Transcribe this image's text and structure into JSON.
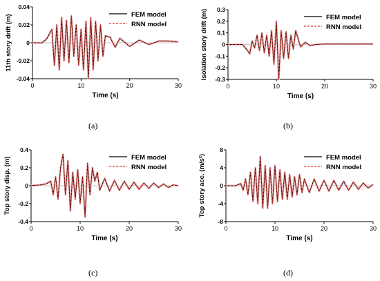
{
  "captions": [
    "(a)",
    "(b)",
    "(c)",
    "(d)"
  ],
  "colors": {
    "fem": "#000000",
    "rnn": "#d9332b",
    "fill": "#f3c2c2"
  },
  "chart_data": [
    {
      "type": "line",
      "panel": "(a)",
      "xlabel": "Time (s)",
      "ylabel": "11th story drift (m)",
      "xlim": [
        0,
        30
      ],
      "ylim": [
        -0.04,
        0.04
      ],
      "xticks": [
        0,
        10,
        20,
        30
      ],
      "yticks": [
        -0.04,
        -0.02,
        0,
        0.02,
        0.04
      ],
      "ytick_labels": [
        "-0.04",
        "-0.02",
        "0",
        "0.02",
        "0.04"
      ],
      "legend": "top-right",
      "series": [
        {
          "name": "FEM model",
          "style": "solid"
        },
        {
          "name": "RNN model",
          "style": "dashed"
        }
      ],
      "x": [
        0,
        2,
        3,
        4,
        4.5,
        5,
        5.5,
        6,
        6.5,
        7,
        7.5,
        8,
        8.5,
        9,
        9.5,
        10,
        10.5,
        11,
        11.5,
        12,
        12.5,
        13,
        13.5,
        14,
        14.5,
        15,
        16,
        17,
        18,
        20,
        22,
        24,
        26,
        28,
        30
      ],
      "y": [
        0,
        0,
        0.005,
        0.015,
        -0.025,
        0.02,
        -0.03,
        0.028,
        -0.02,
        0.025,
        -0.022,
        0.03,
        -0.015,
        0.02,
        -0.025,
        0.015,
        -0.03,
        0.024,
        -0.04,
        0.028,
        -0.03,
        0.024,
        -0.02,
        0.02,
        -0.015,
        0.008,
        0.006,
        -0.005,
        0.005,
        -0.004,
        0.003,
        -0.002,
        0.002,
        0.002,
        0.001
      ]
    },
    {
      "type": "line",
      "panel": "(b)",
      "xlabel": "Time (s)",
      "ylabel": "Isolation story drift (m)",
      "xlim": [
        0,
        30
      ],
      "ylim": [
        -0.3,
        0.3
      ],
      "xticks": [
        0,
        10,
        20,
        30
      ],
      "yticks": [
        -0.3,
        -0.2,
        -0.1,
        0,
        0.1,
        0.2,
        0.3
      ],
      "ytick_labels": [
        "-0.3",
        "-0.2",
        "-0.1",
        "0",
        "0.1",
        "0.2",
        "0.3"
      ],
      "legend": "top-right",
      "series": [
        {
          "name": "FEM model",
          "style": "solid"
        },
        {
          "name": "RNN model",
          "style": "dashed"
        }
      ],
      "x": [
        0,
        3,
        4,
        4.5,
        5,
        5.5,
        6,
        6.5,
        7,
        7.5,
        8,
        8.5,
        9,
        9.5,
        10,
        10.5,
        11,
        11.5,
        12,
        12.5,
        13,
        13.5,
        14,
        15,
        16,
        17,
        18,
        20,
        25,
        30
      ],
      "y": [
        0,
        0,
        -0.05,
        -0.08,
        0.03,
        -0.03,
        0.08,
        -0.05,
        0.1,
        -0.07,
        0.08,
        -0.1,
        0.12,
        -0.17,
        0.2,
        -0.3,
        0.12,
        -0.12,
        0.11,
        -0.12,
        0.08,
        -0.04,
        0.12,
        -0.02,
        0.02,
        -0.01,
        0,
        0.005,
        0.005,
        0.005
      ]
    },
    {
      "type": "line",
      "panel": "(c)",
      "xlabel": "Time (s)",
      "ylabel": "Top story disp. (m)",
      "xlim": [
        0,
        30
      ],
      "ylim": [
        -0.4,
        0.4
      ],
      "xticks": [
        0,
        10,
        20,
        30
      ],
      "yticks": [
        -0.4,
        -0.2,
        0,
        0.2,
        0.4
      ],
      "ytick_labels": [
        "-0.4",
        "-0.2",
        "0",
        "0.2",
        "0.4"
      ],
      "legend": "top-right",
      "series": [
        {
          "name": "FEM model",
          "style": "solid"
        },
        {
          "name": "RNN model",
          "style": "dashed"
        }
      ],
      "x": [
        0,
        2,
        3,
        4,
        4.5,
        5,
        5.5,
        6,
        6.5,
        7,
        7.5,
        8,
        8.5,
        9,
        9.5,
        10,
        10.5,
        11,
        11.5,
        12,
        12.5,
        13,
        13.5,
        14,
        15,
        16,
        17,
        18,
        19,
        20,
        21,
        22,
        23,
        24,
        25,
        26,
        27,
        28,
        29,
        30
      ],
      "y": [
        0,
        0.01,
        0.02,
        0.05,
        -0.1,
        0.1,
        -0.15,
        0.2,
        0.35,
        -0.1,
        0.28,
        -0.28,
        0.15,
        -0.15,
        0.18,
        -0.2,
        0.1,
        -0.35,
        0.25,
        -0.1,
        0.2,
        0.05,
        0.15,
        -0.05,
        0.08,
        -0.06,
        0.06,
        -0.05,
        0.05,
        -0.04,
        0.04,
        -0.04,
        0.03,
        -0.03,
        0.03,
        -0.02,
        0.02,
        -0.02,
        0.01,
        0
      ]
    },
    {
      "type": "line",
      "panel": "(d)",
      "xlabel": "Time (s)",
      "ylabel": "Top story acc. (m/s²)",
      "xlim": [
        0,
        30
      ],
      "ylim": [
        -8,
        8
      ],
      "xticks": [
        0,
        10,
        20,
        30
      ],
      "yticks": [
        -8,
        -4,
        0,
        4,
        8
      ],
      "ytick_labels": [
        "-8",
        "-4",
        "0",
        "4",
        "8"
      ],
      "legend": "top-right",
      "series": [
        {
          "name": "FEM model",
          "style": "solid"
        },
        {
          "name": "RNN model",
          "style": "dashed"
        }
      ],
      "x": [
        0,
        2,
        3,
        3.5,
        4,
        4.5,
        5,
        5.5,
        6,
        6.5,
        7,
        7.5,
        8,
        8.5,
        9,
        9.5,
        10,
        10.5,
        11,
        11.5,
        12,
        12.5,
        13,
        13.5,
        14,
        14.5,
        15,
        15.5,
        16,
        17,
        18,
        19,
        20,
        21,
        22,
        23,
        24,
        25,
        26,
        27,
        28,
        29,
        30
      ],
      "y": [
        0,
        0,
        0.5,
        -1,
        1.5,
        -2,
        3,
        -3.5,
        4,
        -4,
        6.5,
        -5,
        4.5,
        -5,
        4,
        -4,
        4.5,
        -3.5,
        3.5,
        -3,
        3,
        -3,
        2.5,
        -2.5,
        2,
        -2,
        2.5,
        -1.5,
        1.5,
        -1.5,
        1.5,
        -1.2,
        1.2,
        -1.2,
        1.2,
        -1,
        1,
        -1,
        0.8,
        -0.8,
        0.6,
        -0.5,
        0.3
      ]
    }
  ]
}
